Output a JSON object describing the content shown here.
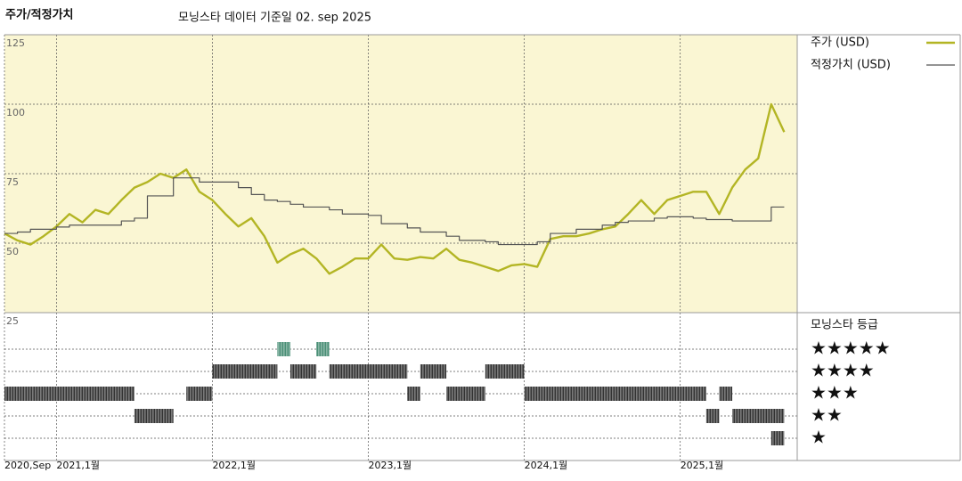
{
  "chart_data": {
    "type": "line",
    "title": "주가/적정가치",
    "subtitle": "모닝스타 데이터 기준일 02. sep 2025",
    "x": [
      "2020-09",
      "2020-10",
      "2020-11",
      "2020-12",
      "2021-01",
      "2021-02",
      "2021-03",
      "2021-04",
      "2021-05",
      "2021-06",
      "2021-07",
      "2021-08",
      "2021-09",
      "2021-10",
      "2021-11",
      "2021-12",
      "2022-01",
      "2022-02",
      "2022-03",
      "2022-04",
      "2022-05",
      "2022-06",
      "2022-07",
      "2022-08",
      "2022-09",
      "2022-10",
      "2022-11",
      "2022-12",
      "2023-01",
      "2023-02",
      "2023-03",
      "2023-04",
      "2023-05",
      "2023-06",
      "2023-07",
      "2023-08",
      "2023-09",
      "2023-10",
      "2023-11",
      "2023-12",
      "2024-01",
      "2024-02",
      "2024-03",
      "2024-04",
      "2024-05",
      "2024-06",
      "2024-07",
      "2024-08",
      "2024-09",
      "2024-10",
      "2024-11",
      "2024-12",
      "2025-01",
      "2025-02",
      "2025-03",
      "2025-04",
      "2025-05",
      "2025-06",
      "2025-07",
      "2025-08",
      "2025-09"
    ],
    "series": [
      {
        "name": "주가 (USD)",
        "color": "#b3b524",
        "step": false,
        "values": [
          53.5,
          51,
          49.5,
          52.5,
          56,
          60.5,
          57.5,
          62,
          60.5,
          65.5,
          70,
          72,
          75,
          73.5,
          76.5,
          68.5,
          65.5,
          60.5,
          56,
          59,
          52.5,
          43,
          46,
          48,
          44.5,
          39,
          41.5,
          44.5,
          44.5,
          49.5,
          44.5,
          44,
          45,
          44.5,
          48,
          44,
          43,
          41.5,
          40,
          42,
          42.5,
          41.5,
          51.5,
          52.5,
          52.5,
          53.5,
          55,
          56,
          60.5,
          65.5,
          60.5,
          65.5,
          67,
          68.5,
          68.5,
          60.5,
          70,
          76.5,
          80.5,
          100,
          90
        ]
      },
      {
        "name": "적정가치 (USD)",
        "color": "#555555",
        "step": true,
        "values": [
          53.5,
          54,
          55,
          55,
          55.8,
          56.5,
          56.5,
          56.5,
          56.5,
          58,
          59,
          67,
          67,
          73.5,
          73.5,
          72,
          72,
          72,
          70,
          67.5,
          65.5,
          65,
          64,
          63,
          63,
          62,
          60.5,
          60.5,
          60,
          57,
          57,
          55.5,
          54,
          54,
          52.5,
          51,
          51,
          50.5,
          49.5,
          49.5,
          49.5,
          50.5,
          53.5,
          53.5,
          55,
          55,
          56.5,
          57.5,
          58,
          58,
          59,
          59.5,
          59.5,
          59,
          58.5,
          58.5,
          58,
          58,
          58,
          63,
          63
        ]
      }
    ],
    "xlim": [
      "2020-09",
      "2025-10"
    ],
    "xticks": [
      {
        "value": "2020-09",
        "label": "2020,Sep"
      },
      {
        "value": "2021-01",
        "label": "2021,1월"
      },
      {
        "value": "2022-01",
        "label": "2022,1월"
      },
      {
        "value": "2023-01",
        "label": "2023,1월"
      },
      {
        "value": "2024-01",
        "label": "2024,1월"
      },
      {
        "value": "2025-01",
        "label": "2025,1월"
      }
    ],
    "ylim": [
      25,
      125
    ],
    "yticks": [
      25,
      50,
      75,
      100,
      125
    ],
    "grid": true,
    "rating_title": "모닝스타 등급",
    "rating_levels": [
      {
        "value": 5,
        "label": "★★★★★"
      },
      {
        "value": 4,
        "label": "★★★★"
      },
      {
        "value": 3,
        "label": "★★★"
      },
      {
        "value": 2,
        "label": "★★"
      },
      {
        "value": 1,
        "label": "★"
      }
    ],
    "rating_colors": {
      "5": "#4a8f76",
      "4": "#333333",
      "3": "#333333",
      "2": "#333333",
      "1": "#333333"
    },
    "ratings": [
      {
        "stars": 3,
        "start": "2020-09",
        "end": "2021-07"
      },
      {
        "stars": 2,
        "start": "2021-07",
        "end": "2021-10"
      },
      {
        "stars": 3,
        "start": "2021-11",
        "end": "2022-01"
      },
      {
        "stars": 4,
        "start": "2022-01",
        "end": "2022-06"
      },
      {
        "stars": 5,
        "start": "2022-06",
        "end": "2022-07"
      },
      {
        "stars": 4,
        "start": "2022-07",
        "end": "2022-09"
      },
      {
        "stars": 5,
        "start": "2022-09",
        "end": "2022-10"
      },
      {
        "stars": 4,
        "start": "2022-10",
        "end": "2023-04"
      },
      {
        "stars": 3,
        "start": "2023-04",
        "end": "2023-05"
      },
      {
        "stars": 4,
        "start": "2023-05",
        "end": "2023-07"
      },
      {
        "stars": 3,
        "start": "2023-07",
        "end": "2023-10"
      },
      {
        "stars": 4,
        "start": "2023-10",
        "end": "2024-01"
      },
      {
        "stars": 3,
        "start": "2024-01",
        "end": "2025-03"
      },
      {
        "stars": 2,
        "start": "2025-03",
        "end": "2025-04"
      },
      {
        "stars": 3,
        "start": "2025-04",
        "end": "2025-05"
      },
      {
        "stars": 2,
        "start": "2025-05",
        "end": "2025-09"
      },
      {
        "stars": 1,
        "start": "2025-08",
        "end": "2025-09"
      }
    ]
  }
}
